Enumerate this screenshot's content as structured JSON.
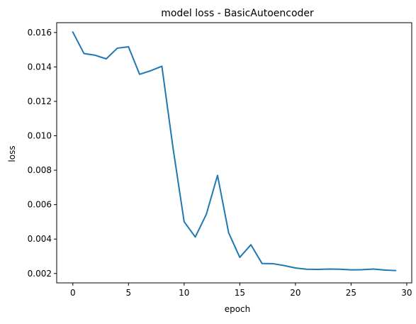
{
  "chart_data": {
    "type": "line",
    "title": "model loss - BasicAutoencoder",
    "xlabel": "epoch",
    "ylabel": "loss",
    "xlim": [
      -1.45,
      30.45
    ],
    "ylim": [
      0.001455,
      0.01657
    ],
    "xticks": [
      0,
      5,
      10,
      15,
      20,
      25,
      30
    ],
    "xtick_labels": [
      "0",
      "5",
      "10",
      "15",
      "20",
      "25",
      "30"
    ],
    "yticks": [
      0.002,
      0.004,
      0.006,
      0.008,
      0.01,
      0.012,
      0.014,
      0.016
    ],
    "ytick_labels": [
      "0.002",
      "0.004",
      "0.006",
      "0.008",
      "0.010",
      "0.012",
      "0.014",
      "0.016"
    ],
    "grid": false,
    "series": [
      {
        "color": "#1f77b4",
        "x": [
          0,
          1,
          2,
          3,
          4,
          5,
          6,
          7,
          8,
          9,
          10,
          11,
          12,
          13,
          14,
          15,
          16,
          17,
          18,
          19,
          20,
          21,
          22,
          23,
          24,
          25,
          26,
          27,
          28,
          29
        ],
        "y": [
          0.01602,
          0.01478,
          0.01468,
          0.01447,
          0.01509,
          0.01517,
          0.01357,
          0.01378,
          0.01404,
          0.0093,
          0.00501,
          0.00412,
          0.00545,
          0.0077,
          0.00436,
          0.00294,
          0.00367,
          0.00258,
          0.00257,
          0.00246,
          0.00232,
          0.00225,
          0.00224,
          0.00226,
          0.00225,
          0.00221,
          0.00222,
          0.00226,
          0.0022,
          0.00217
        ]
      }
    ]
  }
}
